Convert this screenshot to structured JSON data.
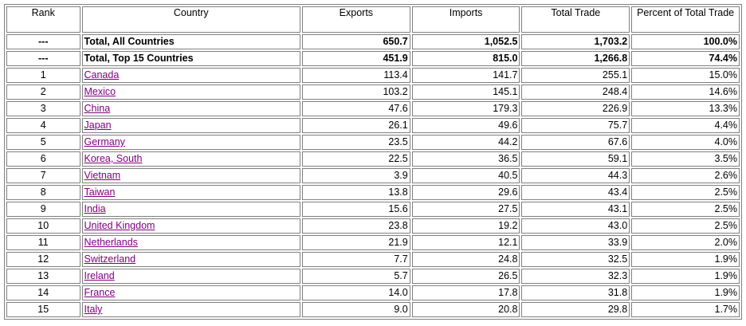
{
  "headers": {
    "rank": "Rank",
    "country": "Country",
    "exports": "Exports",
    "imports": "Imports",
    "total": "Total Trade",
    "percent": "Percent of Total Trade"
  },
  "colors": {
    "link": "#800080",
    "border": "#808080"
  },
  "totals": [
    {
      "rank": "---",
      "country": "Total, All Countries",
      "exports": "650.7",
      "imports": "1,052.5",
      "total": "1,703.2",
      "percent": "100.0%"
    },
    {
      "rank": "---",
      "country": "Total, Top 15 Countries",
      "exports": "451.9",
      "imports": "815.0",
      "total": "1,266.8",
      "percent": "74.4%"
    }
  ],
  "rows": [
    {
      "rank": "1",
      "country": "Canada",
      "exports": "113.4",
      "imports": "141.7",
      "total": "255.1",
      "percent": "15.0%"
    },
    {
      "rank": "2",
      "country": "Mexico",
      "exports": "103.2",
      "imports": "145.1",
      "total": "248.4",
      "percent": "14.6%"
    },
    {
      "rank": "3",
      "country": "China",
      "exports": "47.6",
      "imports": "179.3",
      "total": "226.9",
      "percent": "13.3%"
    },
    {
      "rank": "4",
      "country": "Japan",
      "exports": "26.1",
      "imports": "49.6",
      "total": "75.7",
      "percent": "4.4%"
    },
    {
      "rank": "5",
      "country": "Germany",
      "exports": "23.5",
      "imports": "44.2",
      "total": "67.6",
      "percent": "4.0%"
    },
    {
      "rank": "6",
      "country": "Korea, South",
      "exports": "22.5",
      "imports": "36.5",
      "total": "59.1",
      "percent": "3.5%"
    },
    {
      "rank": "7",
      "country": "Vietnam",
      "exports": "3.9",
      "imports": "40.5",
      "total": "44.3",
      "percent": "2.6%"
    },
    {
      "rank": "8",
      "country": "Taiwan",
      "exports": "13.8",
      "imports": "29.6",
      "total": "43.4",
      "percent": "2.5%"
    },
    {
      "rank": "9",
      "country": "India",
      "exports": "15.6",
      "imports": "27.5",
      "total": "43.1",
      "percent": "2.5%"
    },
    {
      "rank": "10",
      "country": "United Kingdom",
      "exports": "23.8",
      "imports": "19.2",
      "total": "43.0",
      "percent": "2.5%"
    },
    {
      "rank": "11",
      "country": "Netherlands",
      "exports": "21.9",
      "imports": "12.1",
      "total": "33.9",
      "percent": "2.0%"
    },
    {
      "rank": "12",
      "country": "Switzerland",
      "exports": "7.7",
      "imports": "24.8",
      "total": "32.5",
      "percent": "1.9%"
    },
    {
      "rank": "13",
      "country": "Ireland",
      "exports": "5.7",
      "imports": "26.5",
      "total": "32.3",
      "percent": "1.9%"
    },
    {
      "rank": "14",
      "country": "France",
      "exports": "14.0",
      "imports": "17.8",
      "total": "31.8",
      "percent": "1.9%"
    },
    {
      "rank": "15",
      "country": "Italy",
      "exports": "9.0",
      "imports": "20.8",
      "total": "29.8",
      "percent": "1.7%"
    }
  ]
}
